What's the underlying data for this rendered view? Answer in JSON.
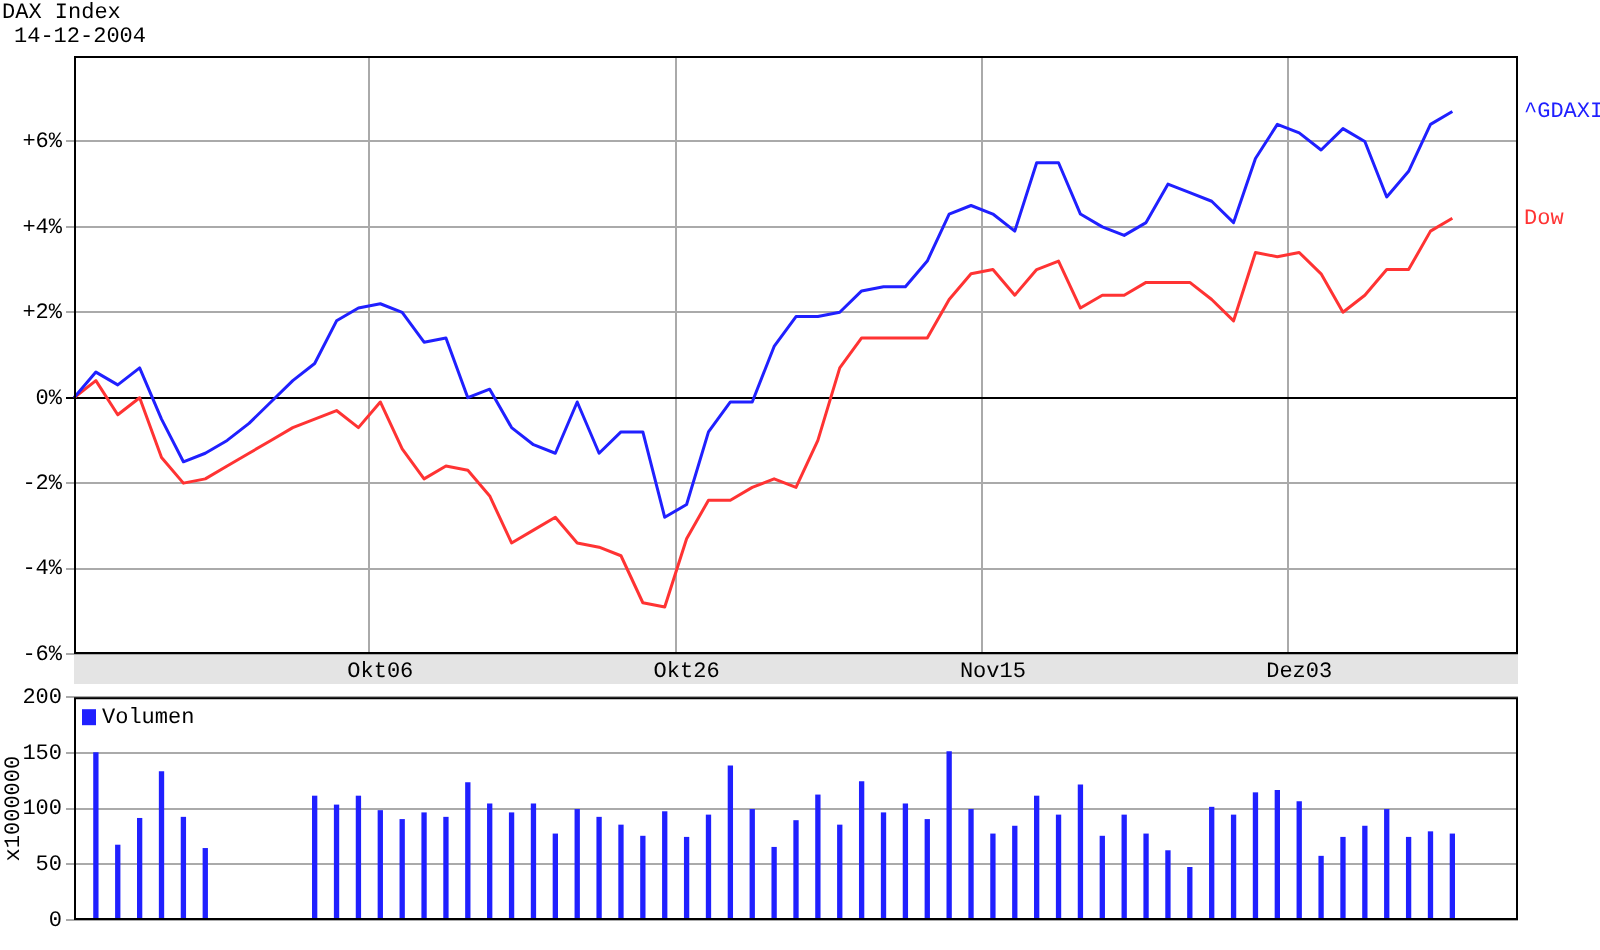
{
  "chart_data": [
    {
      "type": "line",
      "title": "DAX Index",
      "subtitle": "14-12-2004",
      "categories": [
        null,
        null,
        null,
        null,
        null,
        null,
        null,
        null,
        null,
        null,
        null,
        null,
        null,
        null,
        "Okt06",
        null,
        null,
        null,
        null,
        null,
        null,
        null,
        null,
        null,
        null,
        null,
        null,
        null,
        "Okt26",
        null,
        null,
        null,
        null,
        null,
        null,
        null,
        null,
        null,
        null,
        null,
        null,
        null,
        "Nov15",
        null,
        null,
        null,
        null,
        null,
        null,
        null,
        null,
        null,
        null,
        null,
        null,
        null,
        "Dez03",
        null,
        null,
        null,
        null,
        null,
        null,
        null,
        null,
        null,
        null
      ],
      "series": [
        {
          "name": "^GDAXI",
          "color": "#2020ff",
          "values": [
            0,
            0.6,
            0.3,
            0.7,
            -0.5,
            -1.5,
            -1.3,
            -1.0,
            -0.6,
            -0.1,
            0.4,
            0.8,
            1.8,
            2.1,
            2.2,
            2.0,
            1.3,
            1.4,
            0,
            0.2,
            -0.7,
            -1.1,
            -1.3,
            -0.1,
            -1.3,
            -0.8,
            -0.8,
            -2.8,
            -2.5,
            -0.8,
            -0.1,
            -0.1,
            1.2,
            1.9,
            1.9,
            2.0,
            2.5,
            2.6,
            2.6,
            3.2,
            4.3,
            4.5,
            4.3,
            3.9,
            5.5,
            5.5,
            4.3,
            4.0,
            3.8,
            4.1,
            5.0,
            4.8,
            4.6,
            4.1,
            5.6,
            6.4,
            6.2,
            5.8,
            6.3,
            6.0,
            4.7,
            5.3,
            6.4,
            6.7,
            null,
            null,
            null
          ]
        },
        {
          "name": "Dow",
          "color": "#ff3333",
          "values": [
            0,
            0.4,
            -0.4,
            0,
            -1.4,
            -2.0,
            -1.9,
            -1.6,
            -1.3,
            -1.0,
            -0.7,
            -0.5,
            -0.3,
            -0.7,
            -0.1,
            -1.2,
            -1.9,
            -1.6,
            -1.7,
            -2.3,
            -3.4,
            -3.1,
            -2.8,
            -3.4,
            -3.5,
            -3.7,
            -4.8,
            -4.9,
            -3.3,
            -2.4,
            -2.4,
            -2.1,
            -1.9,
            -2.1,
            -1.0,
            0.7,
            1.4,
            1.4,
            1.4,
            1.4,
            2.3,
            2.9,
            3.0,
            2.4,
            3.0,
            3.2,
            2.1,
            2.4,
            2.4,
            2.7,
            2.7,
            2.7,
            2.3,
            1.8,
            3.4,
            3.3,
            3.4,
            2.9,
            2.0,
            2.4,
            3.0,
            3.0,
            3.9,
            4.2,
            null,
            null,
            null
          ]
        }
      ],
      "ylim": [
        -6,
        8
      ],
      "yticks": [
        {
          "value": -6,
          "label": "-6%"
        },
        {
          "value": -4,
          "label": "-4%"
        },
        {
          "value": -2,
          "label": "-2%"
        },
        {
          "value": 0,
          "label": "0%"
        },
        {
          "value": 2,
          "label": "+2%"
        },
        {
          "value": 4,
          "label": "+4%"
        },
        {
          "value": 6,
          "label": "+6%"
        }
      ],
      "grid": true
    },
    {
      "type": "bar",
      "ylabel": "x1000000",
      "categories": [
        null,
        null,
        null,
        null,
        null,
        null,
        null,
        null,
        null,
        null,
        null,
        null,
        null,
        null,
        null,
        null,
        null,
        null,
        null,
        null,
        null,
        null,
        null,
        null,
        null,
        null,
        null,
        null,
        null,
        null,
        null,
        null,
        null,
        null,
        null,
        null,
        null,
        null,
        null,
        null,
        null,
        null,
        null,
        null,
        null,
        null,
        null,
        null,
        null,
        null,
        null,
        null,
        null,
        null,
        null,
        null,
        null,
        null,
        null,
        null,
        null,
        null,
        null,
        null,
        null,
        null,
        null
      ],
      "series": [
        {
          "name": "Volumen",
          "color": "#2020ff",
          "values": [
            null,
            150,
            67,
            91,
            133,
            92,
            64,
            null,
            null,
            null,
            null,
            111,
            103,
            111,
            98,
            90,
            96,
            92,
            123,
            104,
            96,
            104,
            77,
            99,
            92,
            85,
            75,
            97,
            74,
            94,
            138,
            99,
            65,
            89,
            112,
            85,
            124,
            96,
            104,
            90,
            151,
            99,
            77,
            84,
            111,
            94,
            121,
            75,
            94,
            77,
            62,
            47,
            101,
            94,
            114,
            116,
            106,
            57,
            74,
            84,
            99,
            74,
            79,
            77,
            null,
            null,
            null
          ]
        }
      ],
      "ylim": [
        0,
        200
      ],
      "yticks": [
        0,
        50,
        100,
        150,
        200
      ],
      "grid": true,
      "legend": "top left",
      "tick_labels": "y"
    }
  ]
}
